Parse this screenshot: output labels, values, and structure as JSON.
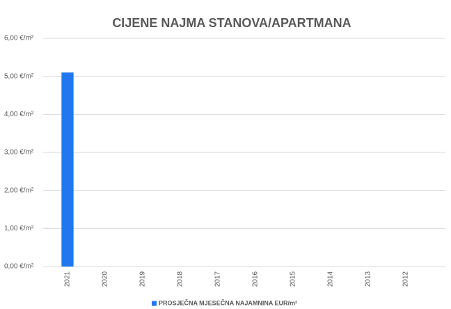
{
  "chart_data": {
    "type": "bar",
    "title": "CIJENE NAJMA STANOVA/APARTMANA",
    "categories": [
      "2021",
      "2020",
      "2019",
      "2018",
      "2017",
      "2016",
      "2015",
      "2014",
      "2013",
      "2012"
    ],
    "series": [
      {
        "name": "PROSJEČNA MJESEČNA NAJAMNINA EUR/m²",
        "color": "#2277ee",
        "values": [
          5.1,
          null,
          null,
          null,
          null,
          null,
          null,
          null,
          null,
          null
        ]
      }
    ],
    "ylim": [
      0,
      6
    ],
    "yticks": [
      {
        "value": 0,
        "label": "0,00 €/m²"
      },
      {
        "value": 1,
        "label": "1,00 €/m²"
      },
      {
        "value": 2,
        "label": "2,00 €/m²"
      },
      {
        "value": 3,
        "label": "3,00 €/m²"
      },
      {
        "value": 4,
        "label": "4,00 €/m²"
      },
      {
        "value": 5,
        "label": "5,00 €/m²"
      },
      {
        "value": 6,
        "label": "6,00 €/m²"
      }
    ],
    "grid": true,
    "legend": "bottom"
  }
}
